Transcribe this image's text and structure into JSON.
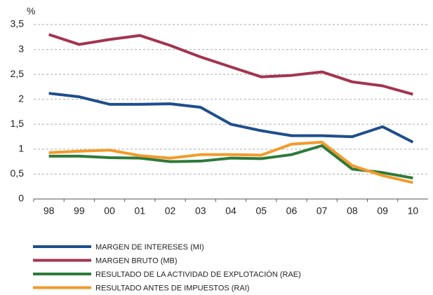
{
  "chart_data": {
    "type": "line",
    "y_unit": "%",
    "categories": [
      "98",
      "99",
      "00",
      "01",
      "02",
      "03",
      "04",
      "05",
      "06",
      "07",
      "08",
      "09",
      "10"
    ],
    "series": [
      {
        "name": "MARGEN DE INTERESES (MI)",
        "color": "#1f4e8c",
        "values": [
          2.12,
          2.05,
          1.9,
          1.9,
          1.91,
          1.84,
          1.5,
          1.37,
          1.27,
          1.27,
          1.25,
          1.45,
          1.14
        ]
      },
      {
        "name": "MARGEN BRUTO (MB)",
        "color": "#a3344f",
        "values": [
          3.3,
          3.1,
          3.2,
          3.28,
          3.08,
          2.85,
          2.65,
          2.45,
          2.48,
          2.55,
          2.35,
          2.27,
          2.1
        ]
      },
      {
        "name": "RESULTADO DE LA ACTIVIDAD DE EXPLOTACIÓN (RAE)",
        "color": "#2e7a3a",
        "values": [
          0.86,
          0.86,
          0.83,
          0.82,
          0.75,
          0.76,
          0.82,
          0.81,
          0.89,
          1.07,
          0.6,
          0.53,
          0.42
        ]
      },
      {
        "name": "RESULTADO ANTES DE IMPUESTOS (RAI)",
        "color": "#f39a2b",
        "values": [
          0.93,
          0.96,
          0.98,
          0.87,
          0.82,
          0.89,
          0.89,
          0.88,
          1.1,
          1.14,
          0.67,
          0.47,
          0.33
        ]
      }
    ],
    "ylim": [
      0,
      3.5
    ],
    "yticks": [
      0,
      {
        "value": 0.5,
        "label": "0,5"
      },
      1,
      {
        "value": 1.5,
        "label": "1,5"
      },
      2,
      {
        "value": 2.5,
        "label": "2,5"
      },
      3,
      {
        "value": 3.5,
        "label": "3,5"
      }
    ],
    "grid": true
  }
}
